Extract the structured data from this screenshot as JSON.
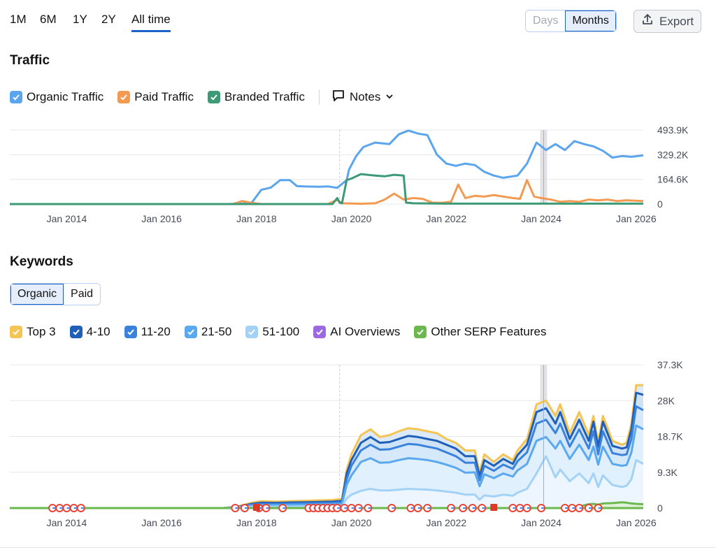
{
  "period_tabs": [
    {
      "label": "1M",
      "active": false
    },
    {
      "label": "6M",
      "active": false
    },
    {
      "label": "1Y",
      "active": false
    },
    {
      "label": "2Y",
      "active": false
    },
    {
      "label": "All time",
      "active": true
    }
  ],
  "granularity": {
    "days": "Days",
    "months": "Months",
    "selected": "Months"
  },
  "export_label": "Export",
  "traffic": {
    "title": "Traffic",
    "legend": [
      {
        "label": "Organic Traffic",
        "color": "#5aa5ee"
      },
      {
        "label": "Paid Traffic",
        "color": "#f29a51"
      },
      {
        "label": "Branded Traffic",
        "color": "#3c9a77"
      }
    ],
    "notes_label": "Notes"
  },
  "keywords": {
    "title": "Keywords",
    "tabs": [
      "Organic",
      "Paid"
    ],
    "selected_tab": "Organic",
    "legend": [
      {
        "label": "Top 3",
        "color": "#f5c452"
      },
      {
        "label": "4-10",
        "color": "#1f5fb7"
      },
      {
        "label": "11-20",
        "color": "#3a82dc"
      },
      {
        "label": "21-50",
        "color": "#5aa8ee"
      },
      {
        "label": "51-100",
        "color": "#a3d2f6"
      },
      {
        "label": "AI Overviews",
        "color": "#9b6ae0"
      },
      {
        "label": "Other SERP Features",
        "color": "#6bb84f"
      }
    ]
  },
  "chart_data": [
    {
      "type": "line",
      "x_tick_labels": [
        "Jan 2014",
        "Jan 2016",
        "Jan 2018",
        "Jan 2020",
        "Jan 2022",
        "Jan 2024",
        "Jan 2026"
      ],
      "y_tick_labels": [
        "493.9K",
        "329.2K",
        "164.6K",
        "0"
      ],
      "ylim": [
        0,
        493900
      ],
      "xlim": [
        2012.8,
        2026.15
      ],
      "grid": true,
      "series": [
        {
          "name": "Organic Traffic",
          "color": "#5aa5ee",
          "points": [
            [
              2012.8,
              0
            ],
            [
              2017.4,
              0
            ],
            [
              2017.7,
              3000
            ],
            [
              2017.9,
              10000
            ],
            [
              2018.1,
              95000
            ],
            [
              2018.3,
              110000
            ],
            [
              2018.5,
              160000
            ],
            [
              2018.7,
              160000
            ],
            [
              2018.85,
              120000
            ],
            [
              2019.0,
              118000
            ],
            [
              2019.3,
              115000
            ],
            [
              2019.5,
              118000
            ],
            [
              2019.7,
              108000
            ],
            [
              2019.9,
              160000
            ],
            [
              2019.95,
              230000
            ],
            [
              2020.1,
              320000
            ],
            [
              2020.25,
              380000
            ],
            [
              2020.5,
              410000
            ],
            [
              2020.8,
              400000
            ],
            [
              2021.0,
              465000
            ],
            [
              2021.2,
              490000
            ],
            [
              2021.4,
              470000
            ],
            [
              2021.6,
              460000
            ],
            [
              2021.8,
              330000
            ],
            [
              2022.0,
              270000
            ],
            [
              2022.2,
              255000
            ],
            [
              2022.4,
              270000
            ],
            [
              2022.6,
              260000
            ],
            [
              2022.8,
              215000
            ],
            [
              2023.0,
              190000
            ],
            [
              2023.2,
              175000
            ],
            [
              2023.5,
              190000
            ],
            [
              2023.7,
              270000
            ],
            [
              2023.9,
              410000
            ],
            [
              2024.1,
              360000
            ],
            [
              2024.3,
              400000
            ],
            [
              2024.5,
              360000
            ],
            [
              2024.7,
              420000
            ],
            [
              2024.9,
              400000
            ],
            [
              2025.1,
              385000
            ],
            [
              2025.3,
              355000
            ],
            [
              2025.5,
              310000
            ],
            [
              2025.7,
              320000
            ],
            [
              2025.9,
              315000
            ],
            [
              2026.15,
              325000
            ]
          ]
        },
        {
          "name": "Paid Traffic",
          "color": "#f29a51",
          "points": [
            [
              2012.8,
              0
            ],
            [
              2017.5,
              0
            ],
            [
              2017.7,
              20000
            ],
            [
              2017.9,
              8000
            ],
            [
              2018.1,
              0
            ],
            [
              2019.5,
              0
            ],
            [
              2019.7,
              28000
            ],
            [
              2019.8,
              5000
            ],
            [
              2020.2,
              2000
            ],
            [
              2020.5,
              5000
            ],
            [
              2020.7,
              30000
            ],
            [
              2020.9,
              70000
            ],
            [
              2021.1,
              30000
            ],
            [
              2021.3,
              40000
            ],
            [
              2021.5,
              35000
            ],
            [
              2021.7,
              10000
            ],
            [
              2021.9,
              8000
            ],
            [
              2022.1,
              15000
            ],
            [
              2022.25,
              130000
            ],
            [
              2022.4,
              40000
            ],
            [
              2022.6,
              55000
            ],
            [
              2022.8,
              50000
            ],
            [
              2023.0,
              60000
            ],
            [
              2023.2,
              50000
            ],
            [
              2023.4,
              40000
            ],
            [
              2023.55,
              35000
            ],
            [
              2023.7,
              160000
            ],
            [
              2023.85,
              50000
            ],
            [
              2024.0,
              40000
            ],
            [
              2024.2,
              30000
            ],
            [
              2024.4,
              15000
            ],
            [
              2024.6,
              20000
            ],
            [
              2024.8,
              15000
            ],
            [
              2025.0,
              30000
            ],
            [
              2025.2,
              25000
            ],
            [
              2025.4,
              30000
            ],
            [
              2025.6,
              20000
            ],
            [
              2025.8,
              25000
            ],
            [
              2026.15,
              20000
            ]
          ]
        },
        {
          "name": "Branded Traffic",
          "color": "#3c9a77",
          "points": [
            [
              2012.8,
              0
            ],
            [
              2019.6,
              0
            ],
            [
              2019.7,
              40000
            ],
            [
              2019.75,
              10000
            ],
            [
              2019.8,
              5000
            ],
            [
              2019.9,
              160000
            ],
            [
              2020.0,
              170000
            ],
            [
              2020.2,
              200000
            ],
            [
              2020.5,
              190000
            ],
            [
              2020.7,
              185000
            ],
            [
              2020.9,
              195000
            ],
            [
              2021.1,
              190000
            ],
            [
              2021.15,
              10000
            ],
            [
              2021.3,
              5000
            ],
            [
              2022.0,
              3000
            ],
            [
              2024.0,
              3000
            ],
            [
              2026.15,
              3000
            ]
          ]
        }
      ]
    },
    {
      "type": "area",
      "x_tick_labels": [
        "Jan 2014",
        "Jan 2016",
        "Jan 2018",
        "Jan 2020",
        "Jan 2022",
        "Jan 2024",
        "Jan 2026"
      ],
      "y_tick_labels": [
        "37.3K",
        "28K",
        "18.7K",
        "9.3K",
        "0"
      ],
      "ylim": [
        0,
        37300
      ],
      "xlim": [
        2012.8,
        2026.15
      ],
      "grid": true,
      "x": [
        2012.8,
        2017.3,
        2017.6,
        2017.9,
        2018.1,
        2018.4,
        2018.7,
        2019.0,
        2019.3,
        2019.6,
        2019.8,
        2019.9,
        2020.0,
        2020.2,
        2020.4,
        2020.6,
        2020.8,
        2021.0,
        2021.2,
        2021.4,
        2021.6,
        2021.8,
        2022.0,
        2022.2,
        2022.4,
        2022.6,
        2022.7,
        2022.8,
        2023.0,
        2023.2,
        2023.4,
        2023.5,
        2023.7,
        2023.9,
        2024.1,
        2024.3,
        2024.4,
        2024.6,
        2024.8,
        2025.0,
        2025.1,
        2025.2,
        2025.3,
        2025.5,
        2025.7,
        2025.8,
        2025.9,
        2026.0,
        2026.15
      ],
      "series": [
        {
          "name": "Top 3",
          "color": "#f5c452",
          "values": [
            0,
            0,
            400,
            1400,
            1800,
            1700,
            1800,
            1900,
            2000,
            2100,
            2400,
            10000,
            14000,
            19000,
            20500,
            18500,
            19000,
            20000,
            20800,
            20500,
            20000,
            19500,
            18000,
            17000,
            15000,
            15000,
            9300,
            14000,
            12000,
            14000,
            12500,
            15000,
            18000,
            27000,
            28000,
            24000,
            27000,
            19500,
            25000,
            19000,
            24000,
            17000,
            24000,
            17500,
            16500,
            17000,
            22000,
            32000,
            32000
          ]
        },
        {
          "name": "4-10",
          "color": "#1f5fb7",
          "values": [
            0,
            0,
            300,
            1100,
            1400,
            1350,
            1450,
            1500,
            1600,
            1700,
            1900,
            9000,
            12500,
            17000,
            18500,
            17000,
            17200,
            18000,
            18800,
            18500,
            18000,
            17500,
            16500,
            15500,
            13500,
            13500,
            8300,
            12500,
            11000,
            12800,
            11500,
            13800,
            16500,
            25000,
            26000,
            22000,
            25000,
            18000,
            23000,
            17500,
            22500,
            16000,
            22500,
            16200,
            15500,
            15800,
            20500,
            30000,
            29500
          ]
        },
        {
          "name": "11-20",
          "color": "#3a82dc",
          "values": [
            0,
            0,
            250,
            900,
            1100,
            1050,
            1150,
            1200,
            1300,
            1350,
            1500,
            7500,
            11000,
            15000,
            16500,
            15200,
            15300,
            16000,
            16700,
            16500,
            16000,
            15500,
            14500,
            13500,
            11800,
            11800,
            7200,
            11000,
            9700,
            11300,
            10200,
            12200,
            14500,
            22000,
            23000,
            19500,
            22000,
            16000,
            20500,
            15500,
            20000,
            14000,
            20000,
            14300,
            13800,
            14000,
            18000,
            26500,
            25500
          ]
        },
        {
          "name": "21-50",
          "color": "#5aa8ee",
          "values": [
            0,
            0,
            200,
            650,
            800,
            780,
            840,
            880,
            950,
            1000,
            1100,
            6000,
            8500,
            12000,
            13000,
            11800,
            11900,
            12500,
            13000,
            12800,
            12500,
            12000,
            11300,
            10500,
            9200,
            9300,
            5700,
            8800,
            7800,
            9000,
            8200,
            9800,
            11500,
            17500,
            18500,
            15500,
            17500,
            12800,
            16500,
            12500,
            16000,
            11300,
            16000,
            11500,
            11000,
            11200,
            14500,
            21500,
            20500
          ]
        },
        {
          "name": "51-100",
          "color": "#a3d2f6",
          "values": [
            0,
            0,
            100,
            300,
            400,
            380,
            420,
            450,
            480,
            500,
            550,
            2500,
            3500,
            4500,
            5000,
            4600,
            4600,
            4800,
            5000,
            4900,
            4800,
            4600,
            4300,
            4000,
            3500,
            3500,
            2200,
            3300,
            3000,
            3500,
            3200,
            4000,
            5000,
            9000,
            13500,
            8000,
            10000,
            7000,
            9000,
            6500,
            9000,
            5500,
            8500,
            6000,
            5500,
            5800,
            7500,
            12500,
            11500
          ]
        },
        {
          "name": "Other SERP Features",
          "color": "#6bb84f",
          "values": [
            0,
            0,
            0,
            0,
            0,
            0,
            0,
            0,
            0,
            0,
            0,
            0,
            0,
            0,
            0,
            0,
            0,
            0,
            0,
            0,
            0,
            0,
            0,
            0,
            0,
            0,
            0,
            0,
            0,
            0,
            0,
            0,
            0,
            0,
            0,
            0,
            0,
            0,
            400,
            1000,
            1100,
            900,
            1200,
            1300,
            1500,
            1400,
            1200,
            1100,
            1000
          ]
        }
      ]
    }
  ]
}
